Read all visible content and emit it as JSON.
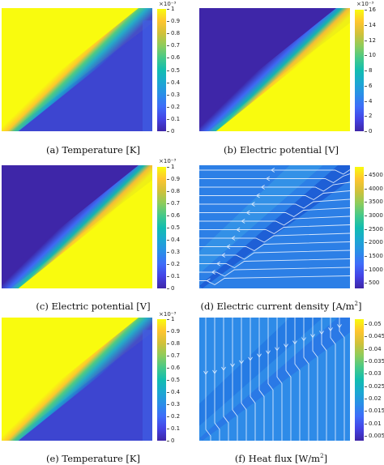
{
  "chart_data": [
    {
      "type": "heatmap",
      "id": "a",
      "caption": "(a) Temperature [K]",
      "colorbar": {
        "ticks": [
          "1",
          "0.9",
          "0.8",
          "0.7",
          "0.6",
          "0.5",
          "0.4",
          "0.3",
          "0.2",
          "0.1",
          "0"
        ],
        "range": [
          0,
          1
        ],
        "multiplier": "×10⁻³"
      },
      "field": "high-upper-left"
    },
    {
      "type": "heatmap",
      "id": "b",
      "caption": "(b) Electric potential [V]",
      "colorbar": {
        "ticks": [
          "16",
          "14",
          "12",
          "10",
          "8",
          "6",
          "4",
          "2",
          "0"
        ],
        "range": [
          0,
          16
        ],
        "multiplier": "×10⁻³"
      },
      "field": "high-lower-right"
    },
    {
      "type": "heatmap",
      "id": "c",
      "caption": "(c) Electric potential [V]",
      "colorbar": {
        "ticks": [
          "1",
          "0.9",
          "0.8",
          "0.7",
          "0.6",
          "0.5",
          "0.4",
          "0.3",
          "0.2",
          "0.1",
          "0"
        ],
        "range": [
          0,
          1
        ],
        "multiplier": "×10⁻³"
      },
      "field": "high-lower-right"
    },
    {
      "type": "heatmap",
      "id": "d",
      "caption": "(d) Electric current density [A/m",
      "caption_sup": "2",
      "caption_tail": "]",
      "colorbar": {
        "ticks": [
          "4500",
          "4000",
          "3500",
          "3000",
          "2500",
          "2000",
          "1500",
          "1000",
          "500"
        ],
        "range": [
          300,
          4800
        ]
      },
      "field": "streamlines-horizontal"
    },
    {
      "type": "heatmap",
      "id": "e",
      "caption": "(e) Temperature [K]",
      "colorbar": {
        "ticks": [
          "1",
          "0.9",
          "0.8",
          "0.7",
          "0.6",
          "0.5",
          "0.4",
          "0.3",
          "0.2",
          "0.1",
          "0"
        ],
        "range": [
          0,
          1
        ],
        "multiplier": "×10⁻³"
      },
      "field": "high-upper-left"
    },
    {
      "type": "heatmap",
      "id": "f",
      "caption": "(f) Heat flux [W/m",
      "caption_sup": "2",
      "caption_tail": "]",
      "colorbar": {
        "ticks": [
          "0.05",
          "0.045",
          "0.04",
          "0.035",
          "0.03",
          "0.025",
          "0.02",
          "0.015",
          "0.01",
          "0.005"
        ],
        "range": [
          0.003,
          0.052
        ]
      },
      "field": "streamlines-vertical"
    }
  ]
}
